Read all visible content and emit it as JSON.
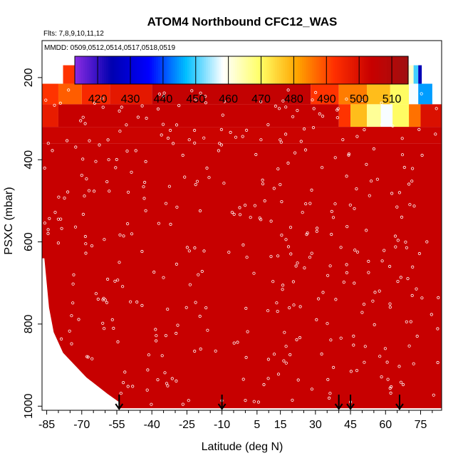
{
  "chart_data": {
    "type": "heatmap",
    "title": "ATOM4 Northbound CFC12_WAS",
    "subtitle": "Flts: 7,8,9,10,11,12",
    "note": "MMDD: 0509,0512,0514,0517,0518,0519",
    "xlabel": "Latitude (deg N)",
    "ylabel": "PSXC (mbar)",
    "xlim": [
      -87,
      84
    ],
    "ylim": [
      1010,
      110
    ],
    "x_ticks": [
      -85,
      -70,
      -55,
      -40,
      -25,
      -10,
      5,
      15,
      30,
      45,
      60,
      75
    ],
    "x_tick_labels": [
      "-85",
      "-70",
      "-55",
      "-40",
      "-25",
      "-10",
      "5",
      "15",
      "30",
      "45",
      "60",
      "75"
    ],
    "y_ticks": [
      200,
      400,
      600,
      800,
      1000
    ],
    "y_tick_labels": [
      "200",
      "400",
      "600",
      "800",
      "1000"
    ],
    "colorbar": {
      "ticks": [
        420,
        430,
        440,
        450,
        460,
        470,
        480,
        490,
        500,
        510
      ],
      "tick_labels": [
        "420",
        "430",
        "440",
        "450",
        "460",
        "470",
        "480",
        "490",
        "500",
        "510"
      ],
      "range": [
        413,
        515
      ],
      "colors": [
        "#8a2be2",
        "#0000b0",
        "#0000ff",
        "#00bfff",
        "#ffffff",
        "#ffff66",
        "#ffa500",
        "#ff3000",
        "#c80000",
        "#a01010"
      ]
    },
    "background_field": [
      {
        "p_top": 170,
        "p_bot": 215,
        "segments": [
          {
            "lat0": -78,
            "lat1": -70,
            "value": 492
          },
          {
            "lat0": -70,
            "lat1": -64,
            "value": 480
          },
          {
            "lat0": -64,
            "lat1": -60,
            "value": 470
          },
          {
            "lat0": -60,
            "lat1": -52,
            "value": 480
          },
          {
            "lat0": -52,
            "lat1": -45,
            "value": 500
          },
          {
            "lat0": -45,
            "lat1": 30,
            "value": 505
          },
          {
            "lat0": 30,
            "lat1": 36,
            "value": 492
          },
          {
            "lat0": 36,
            "lat1": 48,
            "value": 485
          },
          {
            "lat0": 48,
            "lat1": 58,
            "value": 475
          },
          {
            "lat0": 58,
            "lat1": 66,
            "value": 468
          },
          {
            "lat0": 66,
            "lat1": 72,
            "value": 462
          },
          {
            "lat0": 72,
            "lat1": 74,
            "value": 450
          },
          {
            "lat0": 74,
            "lat1": 75.5,
            "value": 425
          }
        ]
      },
      {
        "p_top": 215,
        "p_bot": 265,
        "segments": [
          {
            "lat0": -87,
            "lat1": -80,
            "value": 492
          },
          {
            "lat0": -80,
            "lat1": -70,
            "value": 488
          },
          {
            "lat0": -70,
            "lat1": -58,
            "value": 494
          },
          {
            "lat0": -58,
            "lat1": -40,
            "value": 498
          },
          {
            "lat0": -40,
            "lat1": 28,
            "value": 505
          },
          {
            "lat0": 28,
            "lat1": 40,
            "value": 492
          },
          {
            "lat0": 40,
            "lat1": 52,
            "value": 485
          },
          {
            "lat0": 52,
            "lat1": 62,
            "value": 478
          },
          {
            "lat0": 62,
            "lat1": 70,
            "value": 470
          },
          {
            "lat0": 70,
            "lat1": 74,
            "value": 458
          },
          {
            "lat0": 74,
            "lat1": 80,
            "value": 445
          }
        ]
      },
      {
        "p_top": 265,
        "p_bot": 320,
        "segments": [
          {
            "lat0": -87,
            "lat1": -80,
            "value": 497
          },
          {
            "lat0": -80,
            "lat1": 40,
            "value": 504
          },
          {
            "lat0": 40,
            "lat1": 45,
            "value": 492
          },
          {
            "lat0": 45,
            "lat1": 52,
            "value": 478
          },
          {
            "lat0": 52,
            "lat1": 58,
            "value": 466
          },
          {
            "lat0": 58,
            "lat1": 63,
            "value": 458
          },
          {
            "lat0": 63,
            "lat1": 70,
            "value": 470
          },
          {
            "lat0": 70,
            "lat1": 75,
            "value": 486
          },
          {
            "lat0": 75,
            "lat1": 84,
            "value": 500
          }
        ]
      },
      {
        "p_top": 320,
        "p_bot": 360,
        "segments": [
          {
            "lat0": -87,
            "lat1": 84,
            "value": 503
          }
        ]
      },
      {
        "p_top": 360,
        "p_bot": 1005,
        "segments": [
          {
            "lat0": -87,
            "lat1": 84,
            "value": 504
          }
        ]
      }
    ],
    "empty_region_lower_left": [
      {
        "p": 640,
        "lat": -86
      },
      {
        "p": 700,
        "lat": -85
      },
      {
        "p": 760,
        "lat": -84
      },
      {
        "p": 820,
        "lat": -82
      },
      {
        "p": 870,
        "lat": -78
      },
      {
        "p": 930,
        "lat": -68
      },
      {
        "p": 970,
        "lat": -59
      },
      {
        "p": 990,
        "lat": -54
      },
      {
        "p": 1005,
        "lat": -54
      }
    ],
    "arrow_markers_lat": [
      -54,
      -10,
      40,
      45,
      66
    ]
  }
}
